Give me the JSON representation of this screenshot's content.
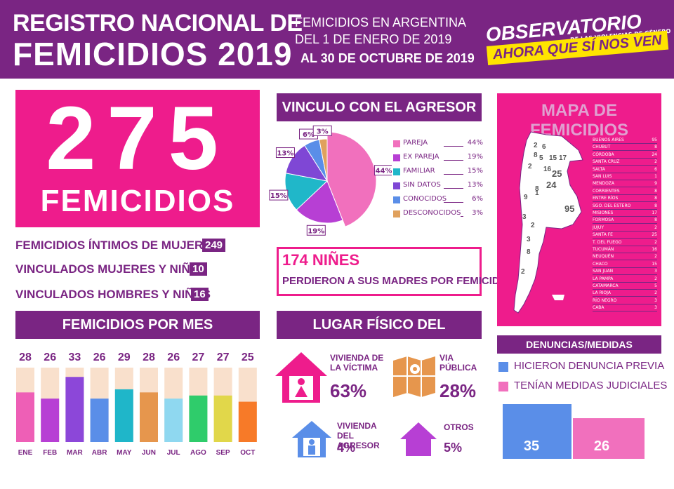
{
  "header": {
    "title_line1": "REGISTRO NACIONAL DE",
    "title_line2": "FEMICIDIOS 2019",
    "subtitle_line1": "FEMICIDIOS EN ARGENTINA",
    "subtitle_line2": "DEL 1 DE ENERO DE 2019",
    "subtitle_line3": "AL 30 DE OCTUBRE DE 2019",
    "logo_main": "OBSERVATORIO",
    "logo_sub": "DE LAS VIOLENCIAS DE GÉNERO",
    "logo_tag": "AHORA QUE SÍ NOS VEN"
  },
  "colors": {
    "purple": "#7a2583",
    "pink": "#ee1c8c",
    "light_pink": "#f7c6e2",
    "yellow": "#ffe400"
  },
  "summary": {
    "total": "275",
    "total_label": "FEMICIDIOS",
    "items": [
      {
        "label": "FEMICIDIOS ÍNTIMOS DE MUJERES",
        "value": "249"
      },
      {
        "label": "VINCULADOS MUJERES Y NIÑAS",
        "value": "10"
      },
      {
        "label": "VINCULADOS HOMBRES Y NIÑOS",
        "value": "16"
      }
    ]
  },
  "ninos": {
    "number": "174 NIÑES",
    "text": "PERDIERON A SUS MADRES POR FEMICIDIO"
  },
  "chart_data": [
    {
      "type": "bar",
      "title": "FEMICIDIOS POR MES",
      "categories": [
        "ENE",
        "FEB",
        "MAR",
        "ABR",
        "MAY",
        "JUN",
        "JUL",
        "AGO",
        "SEP",
        "OCT"
      ],
      "values": [
        28,
        26,
        33,
        26,
        29,
        28,
        26,
        27,
        27,
        25
      ],
      "ylim": [
        0,
        36
      ],
      "bar_colors": [
        "#ee5fb6",
        "#b73fd4",
        "#8c47d9",
        "#5a8ee8",
        "#1fb6c9",
        "#e6964d",
        "#8fd8f0",
        "#2fcc6b",
        "#e1d74a",
        "#f77a28"
      ],
      "background_color": "#f9e0cc"
    },
    {
      "type": "pie",
      "title": "VINCULO CON EL AGRESOR",
      "categories": [
        "PAREJA",
        "EX PAREJA",
        "FAMILIAR",
        "SIN DATOS",
        "CONOCIDOS",
        "DESCONOCIDOS"
      ],
      "values": [
        44,
        19,
        15,
        13,
        6,
        3
      ],
      "labels": [
        "44%",
        "19%",
        "15%",
        "13%",
        "6%",
        "3%"
      ],
      "colors": [
        "#f170bd",
        "#b73fd4",
        "#20b7c9",
        "#7f47d5",
        "#5a8ee8",
        "#e0a15d"
      ]
    },
    {
      "type": "bar",
      "title": "DENUNCIAS/MEDIDAS JUDICIALES",
      "categories": [
        "HICIERON DENUNCIA PREVIA",
        "TENÍAN MEDIDAS JUDICIALES"
      ],
      "values": [
        35,
        26
      ],
      "colors": [
        "#5a8ee8",
        "#f170bd"
      ],
      "ylim": [
        0,
        35
      ]
    }
  ],
  "lugar": {
    "title": "LUGAR FÍSICO DEL FEMICIDIO",
    "items": [
      {
        "label": "VIVIENDA DE LA VÍCTIMA",
        "pct": "63%",
        "icon": "house-woman-icon"
      },
      {
        "label": "VIA PÚBLICA",
        "pct": "28%",
        "icon": "map-icon"
      },
      {
        "label": "VIVIENDA DEL AGRESOR",
        "pct": "4%",
        "icon": "house-man-icon"
      },
      {
        "label": "OTROS",
        "pct": "5%",
        "icon": "house-icon"
      }
    ]
  },
  "mapa": {
    "title": "MAPA DE FEMICIDIOS",
    "provinces": [
      {
        "name": "BUENOS AIRES",
        "value": "95"
      },
      {
        "name": "CHUBUT",
        "value": "8"
      },
      {
        "name": "CÓRDOBA",
        "value": "24"
      },
      {
        "name": "SANTA CRUZ",
        "value": "2"
      },
      {
        "name": "SALTA",
        "value": "6"
      },
      {
        "name": "SAN LUIS",
        "value": "1"
      },
      {
        "name": "MENDOZA",
        "value": "9"
      },
      {
        "name": "CORRIENTES",
        "value": "8"
      },
      {
        "name": "ENTRE RÍOS",
        "value": "8"
      },
      {
        "name": "SGO. DEL ESTERO",
        "value": "8"
      },
      {
        "name": "MISIONES",
        "value": "17"
      },
      {
        "name": "FORMOSA",
        "value": "8"
      },
      {
        "name": "JUJUY",
        "value": "2"
      },
      {
        "name": "SANTA FE",
        "value": "25"
      },
      {
        "name": "T. DEL FUEGO",
        "value": "2"
      },
      {
        "name": "TUCUMÁN",
        "value": "16"
      },
      {
        "name": "NEUQUÉN",
        "value": "2"
      },
      {
        "name": "CHACO",
        "value": "15"
      },
      {
        "name": "SAN JUAN",
        "value": "3"
      },
      {
        "name": "LA PAMPA",
        "value": "2"
      },
      {
        "name": "CATAMARCA",
        "value": "5"
      },
      {
        "name": "LA RIOJA",
        "value": "2"
      },
      {
        "name": "RÍO NEGRO",
        "value": "3"
      },
      {
        "name": "CABA",
        "value": "3"
      }
    ],
    "map_labels": [
      "2",
      "6",
      "8",
      "5",
      "15",
      "17",
      "2",
      "16",
      "25",
      "24",
      "8",
      "9",
      "1",
      "95",
      "3",
      "2",
      "3",
      "8",
      "2"
    ]
  }
}
